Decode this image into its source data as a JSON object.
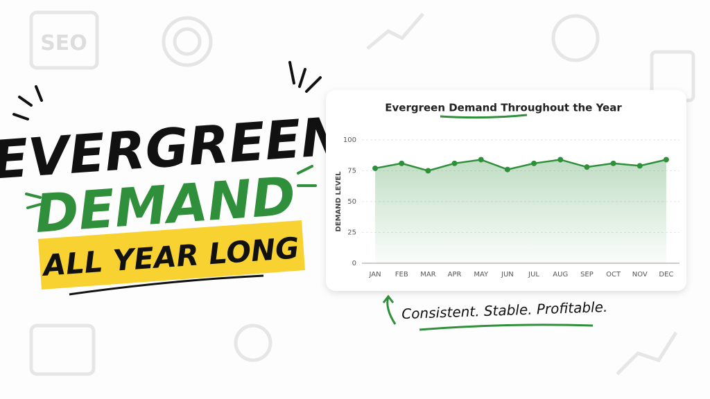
{
  "headline": {
    "line1": "EVERGREEN",
    "line2": "DEMAND",
    "line3": "ALL YEAR LONG"
  },
  "caption": "Consistent. Stable. Profitable.",
  "background_icon_text": "SEO",
  "chart_data": {
    "type": "line",
    "title": "Evergreen Demand Throughout the Year",
    "y_label": "DEMAND LEVEL",
    "categories": [
      "JAN",
      "FEB",
      "MAR",
      "APR",
      "MAY",
      "JUN",
      "JUL",
      "AUG",
      "SEP",
      "OCT",
      "NOV",
      "DEC"
    ],
    "values": [
      77,
      81,
      75,
      81,
      84,
      76,
      81,
      84,
      78,
      81,
      79,
      84
    ],
    "color": "#2f8f3a",
    "area": true,
    "ylim": [
      0,
      100
    ],
    "yticks": [
      0,
      25,
      50,
      75,
      100
    ],
    "grid": true
  }
}
